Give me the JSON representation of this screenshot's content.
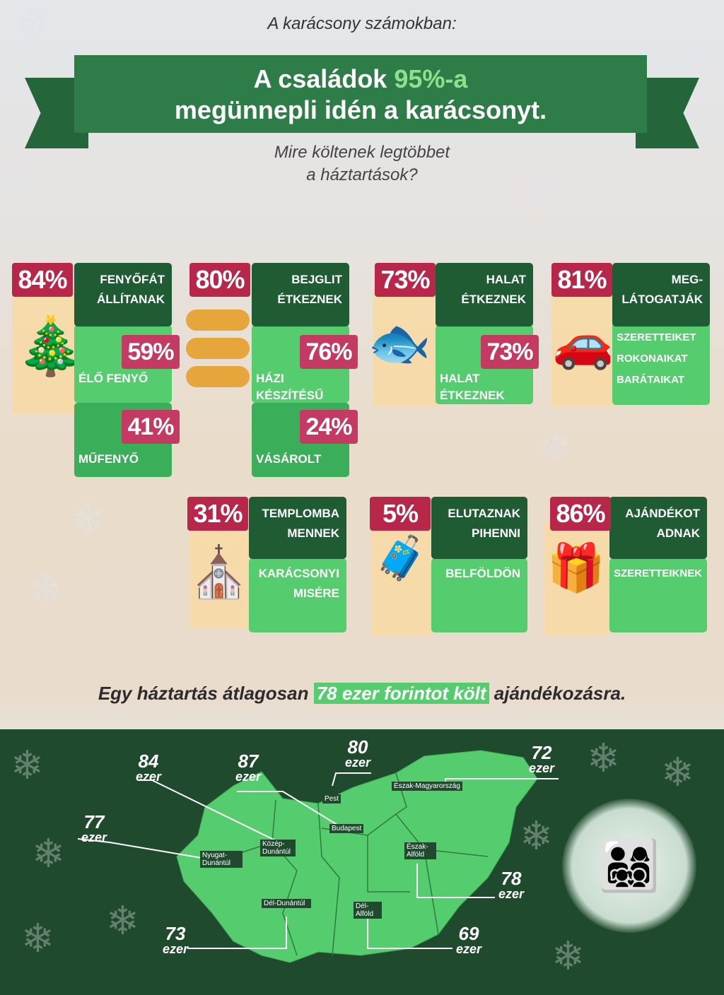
{
  "header": {
    "kicker": "A karácsony számokban:",
    "title_part1": "A családok ",
    "title_highlight": "95%-a",
    "title_line2": "megünnepli idén a karácsonyt.",
    "subtitle_line1": "Mire költenek  legtöbbet",
    "subtitle_line2": "a háztartások?"
  },
  "cards": [
    {
      "pct": "84%",
      "label": "Fenyőfát állítanak",
      "icon": "christmas-tree-icon",
      "sub": [
        {
          "label": "Élő fenyő",
          "pct": "59%"
        },
        {
          "label": "Műfenyő",
          "pct": "41%"
        }
      ]
    },
    {
      "pct": "80%",
      "label": "Bejglit étkeznek",
      "icon": "bejgli-icon",
      "sub": [
        {
          "label": "Házi készítésű",
          "pct": "76%"
        },
        {
          "label": "Vásárolt",
          "pct": "24%"
        }
      ]
    },
    {
      "pct": "73%",
      "label": "Halat étkeznek",
      "icon": "fish-icon",
      "sub": [
        {
          "label": "Halat étkeznek",
          "pct": "73%"
        }
      ]
    },
    {
      "pct": "81%",
      "label": "Meg-látogatják",
      "icon": "car-icon",
      "sub": [
        {
          "label": "Szeretteiket rokonaikat barátaikat"
        }
      ]
    },
    {
      "pct": "31%",
      "label": "Templomba mennek",
      "icon": "church-icon",
      "sub": [
        {
          "label": "Karácsonyi misére"
        }
      ]
    },
    {
      "pct": "5%",
      "label": "Elutaznak pihenni",
      "icon": "luggage-family-icon",
      "sub": [
        {
          "label": "Belföldön"
        }
      ]
    },
    {
      "pct": "86%",
      "label": "Ajándékot adnak",
      "icon": "gift-icon",
      "sub": [
        {
          "label": "Szeretteiknek"
        }
      ]
    }
  ],
  "spending": {
    "before": "Egy háztartás átlagosan ",
    "highlight": "78 ezer forintot költ",
    "after": " ajándékozásra."
  },
  "map": {
    "unit": "ezer",
    "regions": [
      {
        "name": "Közép-Dunántúl",
        "value": "84"
      },
      {
        "name": "Budapest",
        "value": "87"
      },
      {
        "name": "Pest",
        "value": "80"
      },
      {
        "name": "Észak-Magyarország",
        "value": "72"
      },
      {
        "name": "Nyugat-Dunántúl",
        "value": "77"
      },
      {
        "name": "Észak-Alföld",
        "value": "78"
      },
      {
        "name": "Dél-Dunántúl",
        "value": "73"
      },
      {
        "name": "Dél-Alföld",
        "value": "69"
      }
    ]
  },
  "colors": {
    "dark_green": "#1f5c34",
    "bright_green": "#55cc6e",
    "crimson": "#b8264a",
    "beige": "#f8d9a3",
    "map_bg": "#1f4a2e"
  }
}
